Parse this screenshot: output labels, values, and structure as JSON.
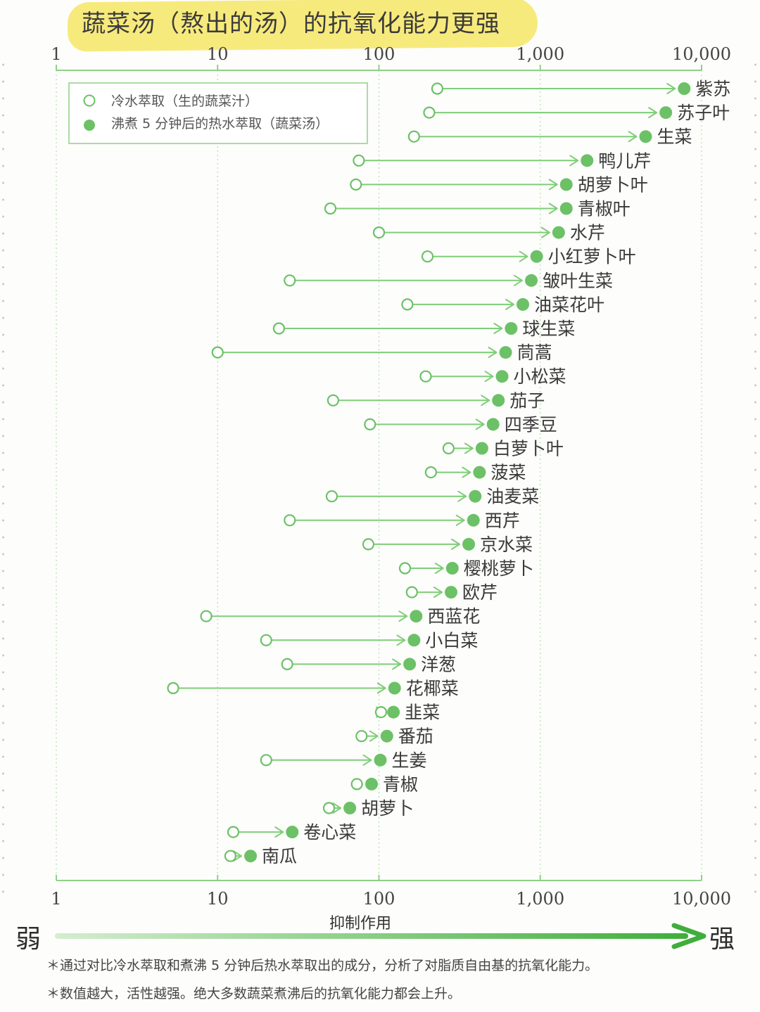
{
  "title": "蔬菜汤（熬出的汤）的抗氧化能力更强",
  "legend": {
    "cold": "冷水萃取（生的蔬菜汁）",
    "hot": "沸煮 5 分钟后的热水萃取（蔬菜汤）"
  },
  "axis": {
    "title": "抑制作用",
    "weak": "弱",
    "strong": "强"
  },
  "footnotes": [
    "＊通过对比冷水萃取和煮沸 5 分钟后热水萃取出的成分，分析了对脂质自由基的抗氧化能力。",
    "＊数值越大，活性越强。绝大多数蔬菜煮沸后的抗氧化能力都会上升。"
  ],
  "colors": {
    "green": "#6cc167",
    "line": "#7fcd78",
    "highlight": "#f7ea7c"
  },
  "chart_data": {
    "type": "dumbbell",
    "scale": "log10",
    "xlim": [
      1,
      10000
    ],
    "ticks": [
      1,
      10,
      100,
      1000,
      10000
    ],
    "tick_labels": [
      "1",
      "10",
      "100",
      "1,000",
      "10,000"
    ],
    "series": [
      {
        "name": "冷水萃取（生的蔬菜汁）",
        "marker": "open-circle"
      },
      {
        "name": "沸煮 5 分钟后的热水萃取（蔬菜汤）",
        "marker": "filled-circle"
      }
    ],
    "items": [
      {
        "name": "紫苏",
        "cold": 230,
        "hot": 7800
      },
      {
        "name": "苏子叶",
        "cold": 205,
        "hot": 6000
      },
      {
        "name": "生菜",
        "cold": 165,
        "hot": 4500
      },
      {
        "name": "鸭儿芹",
        "cold": 75,
        "hot": 1950
      },
      {
        "name": "胡萝卜叶",
        "cold": 72,
        "hot": 1450
      },
      {
        "name": "青椒叶",
        "cold": 50,
        "hot": 1450
      },
      {
        "name": "水芹",
        "cold": 100,
        "hot": 1300
      },
      {
        "name": "小红萝卜叶",
        "cold": 200,
        "hot": 950
      },
      {
        "name": "皱叶生菜",
        "cold": 28,
        "hot": 880
      },
      {
        "name": "油菜花叶",
        "cold": 150,
        "hot": 780
      },
      {
        "name": "球生菜",
        "cold": 24,
        "hot": 660
      },
      {
        "name": "茼蒿",
        "cold": 10,
        "hot": 610
      },
      {
        "name": "小松菜",
        "cold": 195,
        "hot": 580
      },
      {
        "name": "茄子",
        "cold": 52,
        "hot": 550
      },
      {
        "name": "四季豆",
        "cold": 88,
        "hot": 510
      },
      {
        "name": "白萝卜叶",
        "cold": 270,
        "hot": 435
      },
      {
        "name": "菠菜",
        "cold": 210,
        "hot": 420
      },
      {
        "name": "油麦菜",
        "cold": 51,
        "hot": 395
      },
      {
        "name": "西芹",
        "cold": 28,
        "hot": 385
      },
      {
        "name": "京水菜",
        "cold": 86,
        "hot": 360
      },
      {
        "name": "樱桃萝卜",
        "cold": 145,
        "hot": 285
      },
      {
        "name": "欧芹",
        "cold": 160,
        "hot": 280
      },
      {
        "name": "西蓝花",
        "cold": 8.5,
        "hot": 170
      },
      {
        "name": "小白菜",
        "cold": 20,
        "hot": 165
      },
      {
        "name": "洋葱",
        "cold": 27,
        "hot": 155
      },
      {
        "name": "花椰菜",
        "cold": 5.3,
        "hot": 125
      },
      {
        "name": "韭菜",
        "cold": 103,
        "hot": 123
      },
      {
        "name": "番茄",
        "cold": 78,
        "hot": 112
      },
      {
        "name": "生姜",
        "cold": 20,
        "hot": 102
      },
      {
        "name": "青椒",
        "cold": 73,
        "hot": 90
      },
      {
        "name": "胡萝卜",
        "cold": 49,
        "hot": 66
      },
      {
        "name": "卷心菜",
        "cold": 12.5,
        "hot": 29
      },
      {
        "name": "南瓜",
        "cold": 12,
        "hot": 16
      }
    ]
  }
}
